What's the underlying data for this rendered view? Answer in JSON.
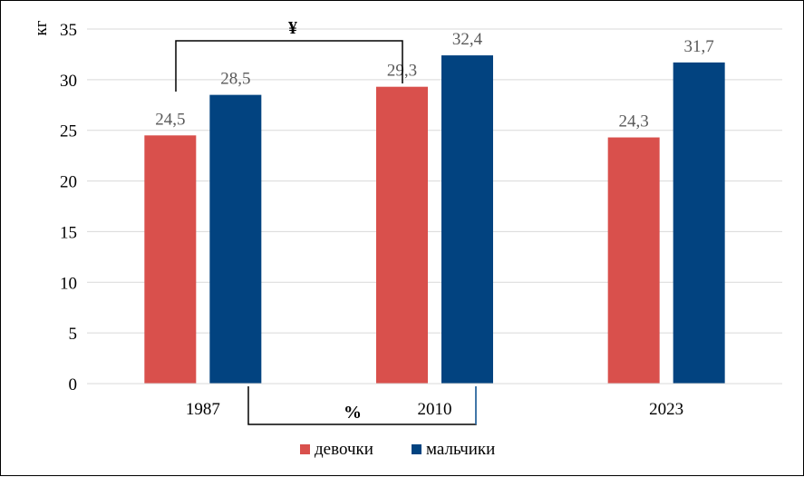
{
  "chart_data": {
    "type": "bar",
    "ylabel": "кг",
    "xlabel": "",
    "title": "",
    "ylim": [
      0,
      35
    ],
    "yticks": [
      0,
      5,
      10,
      15,
      20,
      25,
      30,
      35
    ],
    "categories": [
      "1987",
      "2010",
      "2023"
    ],
    "series": [
      {
        "name": "девочки",
        "color": "#d9504c",
        "values": [
          24.5,
          29.3,
          24.3
        ],
        "labels": [
          "24,5",
          "29,3",
          "24,3"
        ]
      },
      {
        "name": "мальчики",
        "color": "#024380",
        "values": [
          28.5,
          32.4,
          31.7
        ],
        "labels": [
          "28,5",
          "32,4",
          "31,7"
        ]
      }
    ],
    "grid": true,
    "legend_position": "bottom",
    "annotations": [
      {
        "text": "¥",
        "links": [
          "девочки 1987",
          "девочки 2010"
        ]
      },
      {
        "text": "%",
        "links": [
          "мальчики 1987",
          "мальчики 2010"
        ]
      }
    ]
  }
}
